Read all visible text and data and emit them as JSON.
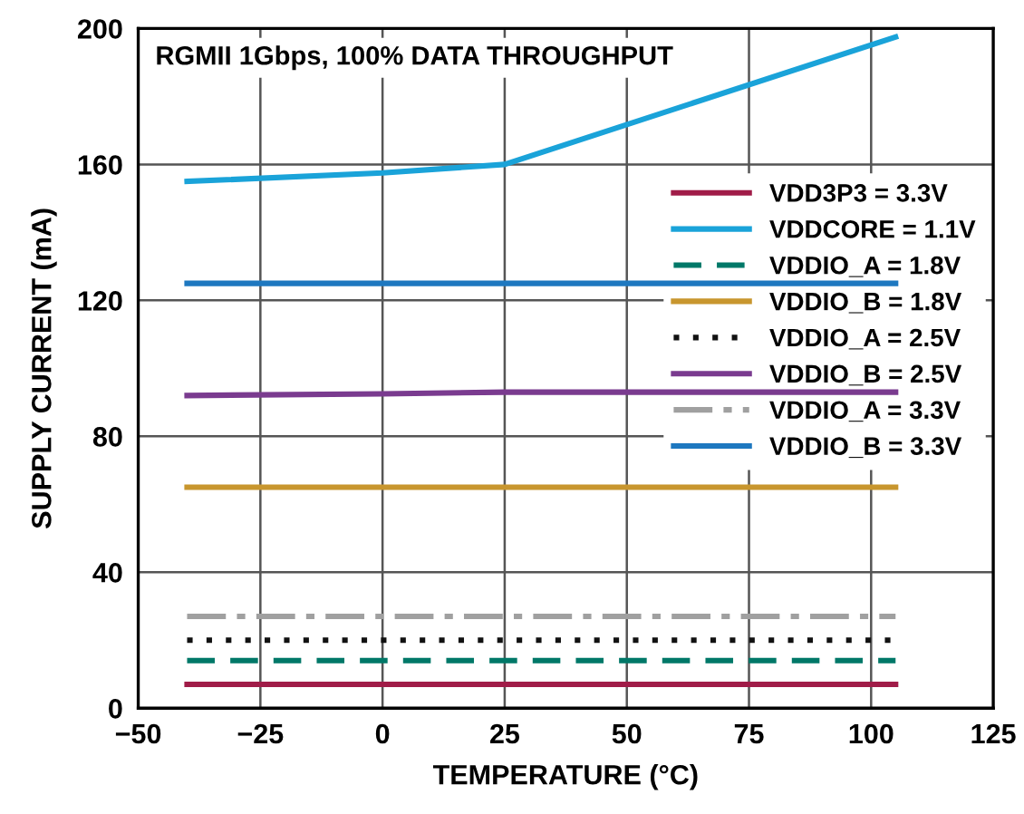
{
  "chart_data": {
    "type": "line",
    "xlabel": "TEMPERATURE (°C)",
    "ylabel": "SUPPLY CURRENT (mA)",
    "annotations": [
      "RGMII 1Gbps, 100% DATA THROUGHPUT"
    ],
    "xlim": [
      -50,
      125
    ],
    "xticks": [
      {
        "value": -50,
        "label": "−50"
      },
      {
        "value": -25,
        "label": "−25"
      },
      0,
      25,
      50,
      75,
      100,
      125
    ],
    "ylim": [
      0,
      200
    ],
    "yticks": [
      0,
      40,
      80,
      120,
      160,
      200
    ],
    "grid": true,
    "legend": "right",
    "marker": "none",
    "x": [
      -40,
      0,
      25,
      105
    ],
    "series": [
      {
        "name": "VDD3P3 = 3.3V",
        "color": "#a01c48",
        "values": [
          7,
          7,
          7,
          7
        ]
      },
      {
        "name": "VDDCORE = 1.1V",
        "color": "#1aa3d9",
        "values": [
          155,
          157.5,
          160,
          197.5
        ]
      },
      {
        "name": "VDDIO_A = 1.8V",
        "color": "#007868",
        "line_style": "dashed",
        "values": [
          14,
          14,
          14,
          14
        ]
      },
      {
        "name": "VDDIO_B = 1.8V",
        "color": "#c8962e",
        "values": [
          65,
          65,
          65,
          65
        ]
      },
      {
        "name": "VDDIO_A = 2.5V",
        "color": "#111111",
        "line_style": "dotted",
        "values": [
          20,
          20,
          20,
          20
        ]
      },
      {
        "name": "VDDIO_B = 2.5V",
        "color": "#7a3b8f",
        "values": [
          92,
          92.5,
          93,
          93
        ]
      },
      {
        "name": "VDDIO_A = 3.3V",
        "color": "#a0a0a0",
        "line_style": "dashdot",
        "values": [
          27,
          27,
          27,
          27
        ]
      },
      {
        "name": "VDDIO_B = 3.3V",
        "color": "#1e78c0",
        "values": [
          125,
          125,
          125,
          125
        ]
      }
    ]
  }
}
